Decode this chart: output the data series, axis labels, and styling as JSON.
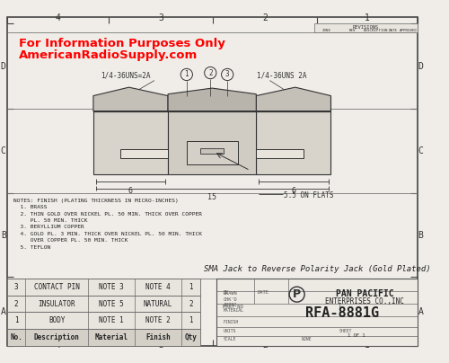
{
  "bg_color": "#f0ede8",
  "border_color": "#888888",
  "red_text_line1": "For Information Purposes Only",
  "red_text_line2": "AmericanRadioSupply.com",
  "title_text": "SMA Jack to Reverse Polarity Jack (Gold Plated)",
  "part_no": "RFA-8881G",
  "company_name": "PAN PACIFIC\nENTERPRISES CO.,INC",
  "notes": "NOTES: FINISH (PLATING THICKNESS IN MICRO-INCHES)\n  1. BRASS\n  2. THIN GOLD OVER NICKEL PL. 50 MIN. THICK OVER COPPER\n     PL. 50 MIN. THICK\n  3. BERYLLIUM COPPER\n  4. GOLD PL. 3 MIN. THICK OVER NICKEL PL. 50 MIN. THICK\n     OVER COPPER PL. 50 MIN. THICK\n  5. TEFLON",
  "table_rows": [
    [
      "3",
      "CONTACT PIN",
      "NOTE 3",
      "NOTE 4",
      "1"
    ],
    [
      "2",
      "INSULATOR",
      "NOTE 5",
      "NATURAL",
      "2"
    ],
    [
      "1",
      "BODY",
      "NOTE 1",
      "NOTE 2",
      "1"
    ],
    [
      "No.",
      "Description",
      "Material",
      "Finish",
      "Qty"
    ]
  ],
  "dim_labels": [
    "1/4-36UNS=2A",
    "1/4-36UNS 2A",
    "6",
    "6",
    "15",
    "5.5 ON FLATS"
  ],
  "row_labels": [
    "D",
    "C",
    "B",
    "A"
  ],
  "col_labels": [
    "4",
    "3",
    "2",
    "1"
  ],
  "callouts": [
    "1",
    "2",
    "3"
  ],
  "draw_color": "#333333",
  "hatch_fill": "#c8c4bc",
  "body_fill": "#d8d4cc",
  "shoulder_fill": "#ccc8c0"
}
